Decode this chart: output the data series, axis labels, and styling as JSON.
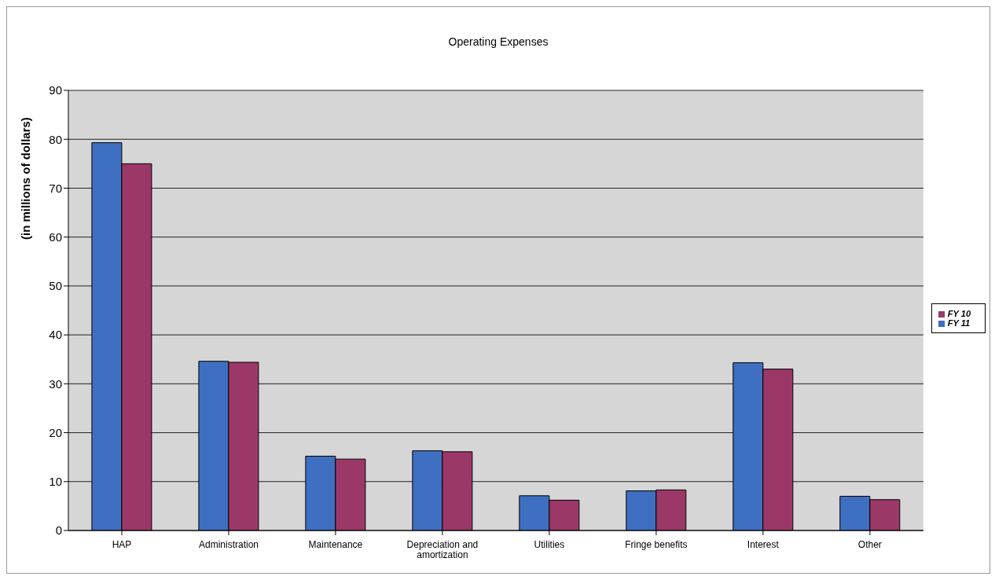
{
  "chart_data": {
    "type": "bar",
    "title": "Operating Expenses",
    "ylabel": "(in millions of dollars)",
    "categories": [
      "HAP",
      "Administration",
      "Maintenance",
      "Depreciation and amortization",
      "Utilities",
      "Fringe benefits",
      "Interest",
      "Other"
    ],
    "series": [
      {
        "name": "FY 11",
        "color": "#3f6fc0",
        "values": [
          79.3,
          34.6,
          15.2,
          16.3,
          7.1,
          8.1,
          34.3,
          7.0
        ]
      },
      {
        "name": "FY 10",
        "color": "#9b3868",
        "values": [
          75.0,
          34.4,
          14.6,
          16.1,
          6.2,
          8.3,
          33.0,
          6.3
        ]
      }
    ],
    "ylim": [
      0,
      90
    ],
    "yticks": [
      0,
      10,
      20,
      30,
      40,
      50,
      60,
      70,
      80,
      90
    ],
    "grid": "y",
    "legend": "right"
  }
}
